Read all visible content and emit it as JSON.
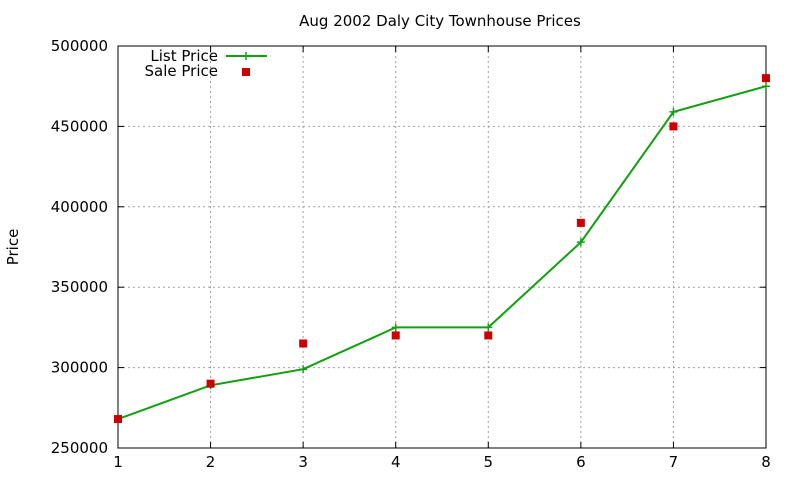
{
  "chart_data": {
    "type": "line",
    "title": "Aug 2002 Daly City Townhouse Prices",
    "xlabel": "",
    "ylabel": "Price",
    "x": [
      1,
      2,
      3,
      4,
      5,
      6,
      7,
      8
    ],
    "xlim": [
      1,
      8
    ],
    "ylim": [
      250000,
      500000
    ],
    "xticks": [
      1,
      2,
      3,
      4,
      5,
      6,
      7,
      8
    ],
    "yticks": [
      250000,
      300000,
      350000,
      400000,
      450000,
      500000
    ],
    "grid": true,
    "legend": "top-left",
    "series": [
      {
        "name": "List Price",
        "style": "line-with-plus-markers",
        "color": "#10a010",
        "values": [
          268000,
          289000,
          299000,
          325000,
          325000,
          378000,
          459000,
          475000
        ]
      },
      {
        "name": "Sale Price",
        "style": "square-markers",
        "color": "#cc0000",
        "values": [
          268000,
          290000,
          315000,
          320000,
          320000,
          390000,
          450000,
          480000
        ]
      }
    ]
  }
}
